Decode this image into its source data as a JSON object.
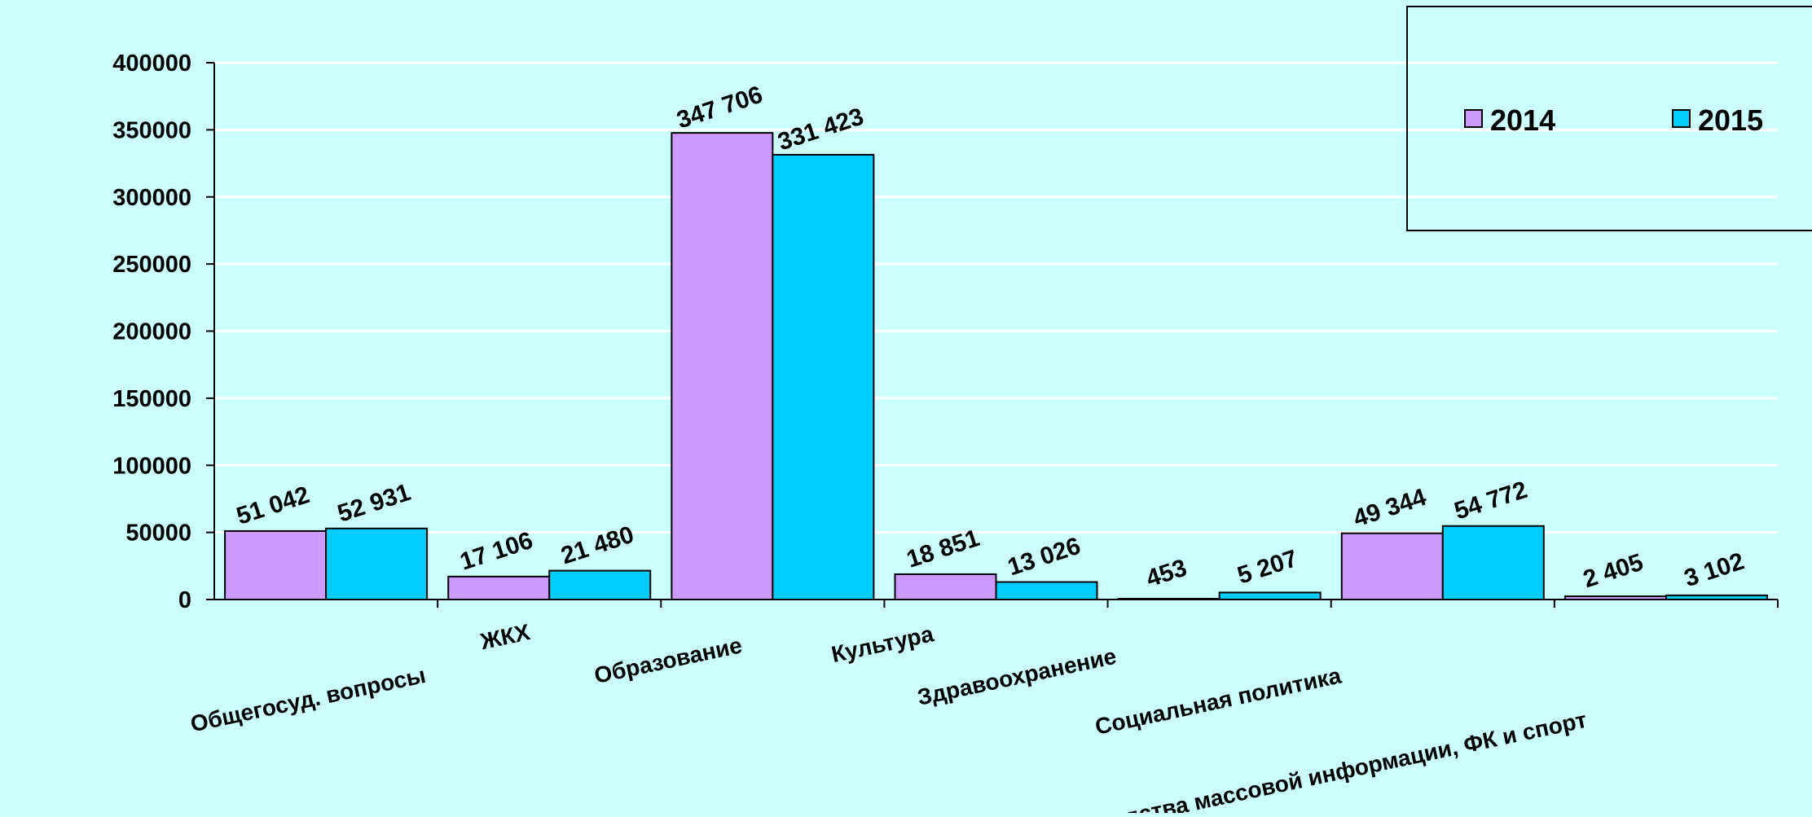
{
  "chart_data": {
    "type": "bar",
    "categories": [
      "Общегосуд. вопросы",
      "ЖКХ",
      "Образование",
      "Культура",
      "Здравоохранение",
      "Социальная политика",
      "Средства массовой информации, ФК и спорт"
    ],
    "series": [
      {
        "name": "2014",
        "color": "#cc99ff",
        "values": [
          51042,
          17106,
          347706,
          18851,
          453,
          49344,
          2405
        ],
        "labels": [
          "51 042",
          "17 106",
          "347 706",
          "18 851",
          "453",
          "49 344",
          "2 405"
        ]
      },
      {
        "name": "2015",
        "color": "#00ccff",
        "values": [
          52931,
          21480,
          331423,
          13026,
          5207,
          54772,
          3102
        ],
        "labels": [
          "52 931",
          "21 480",
          "331 423",
          "13 026",
          "5 207",
          "54 772",
          "3 102"
        ]
      }
    ],
    "y_ticks": [
      "0",
      "50000",
      "100000",
      "150000",
      "200000",
      "250000",
      "300000",
      "350000",
      "400000"
    ],
    "ylim": [
      0,
      400000
    ],
    "grid": true,
    "legend_position": "top-right",
    "background_color": "#ccffff"
  }
}
